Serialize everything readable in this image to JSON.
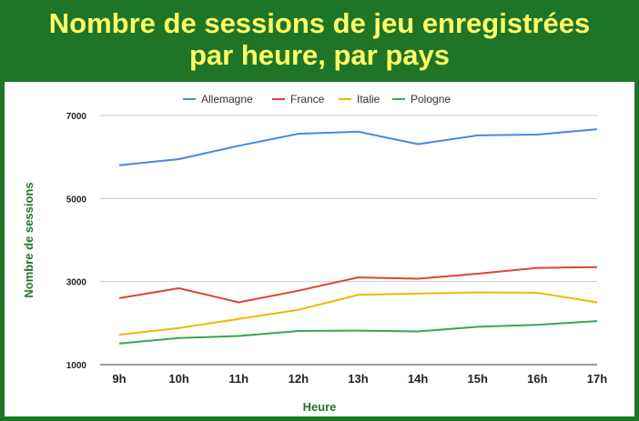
{
  "header": {
    "title_line1": "Nombre de sessions de jeu enregistrées",
    "title_line2": "par heure, par pays"
  },
  "chart_data": {
    "type": "line",
    "title": "Nombre de sessions de jeu enregistrées par heure, par pays",
    "xlabel": "Heure",
    "ylabel": "Nombre de sessions",
    "categories": [
      "9h",
      "10h",
      "11h",
      "12h",
      "13h",
      "14h",
      "15h",
      "16h",
      "17h"
    ],
    "yticks": [
      1000,
      3000,
      5000,
      7000
    ],
    "ylim": [
      1000,
      7000
    ],
    "grid": true,
    "legend_position": "top",
    "series": [
      {
        "name": "Allemagne",
        "color": "#4a86e8",
        "values": [
          5800,
          5950,
          6270,
          6560,
          6610,
          6310,
          6520,
          6540,
          6670
        ]
      },
      {
        "name": "France",
        "color": "#db4437",
        "values": [
          2600,
          2840,
          2500,
          2780,
          3100,
          3070,
          3190,
          3330,
          3350
        ]
      },
      {
        "name": "Italie",
        "color": "#f4b400",
        "values": [
          1720,
          1880,
          2100,
          2320,
          2680,
          2710,
          2740,
          2730,
          2500
        ]
      },
      {
        "name": "Pologne",
        "color": "#34a853",
        "values": [
          1510,
          1640,
          1690,
          1810,
          1820,
          1800,
          1910,
          1960,
          2050
        ]
      }
    ]
  }
}
